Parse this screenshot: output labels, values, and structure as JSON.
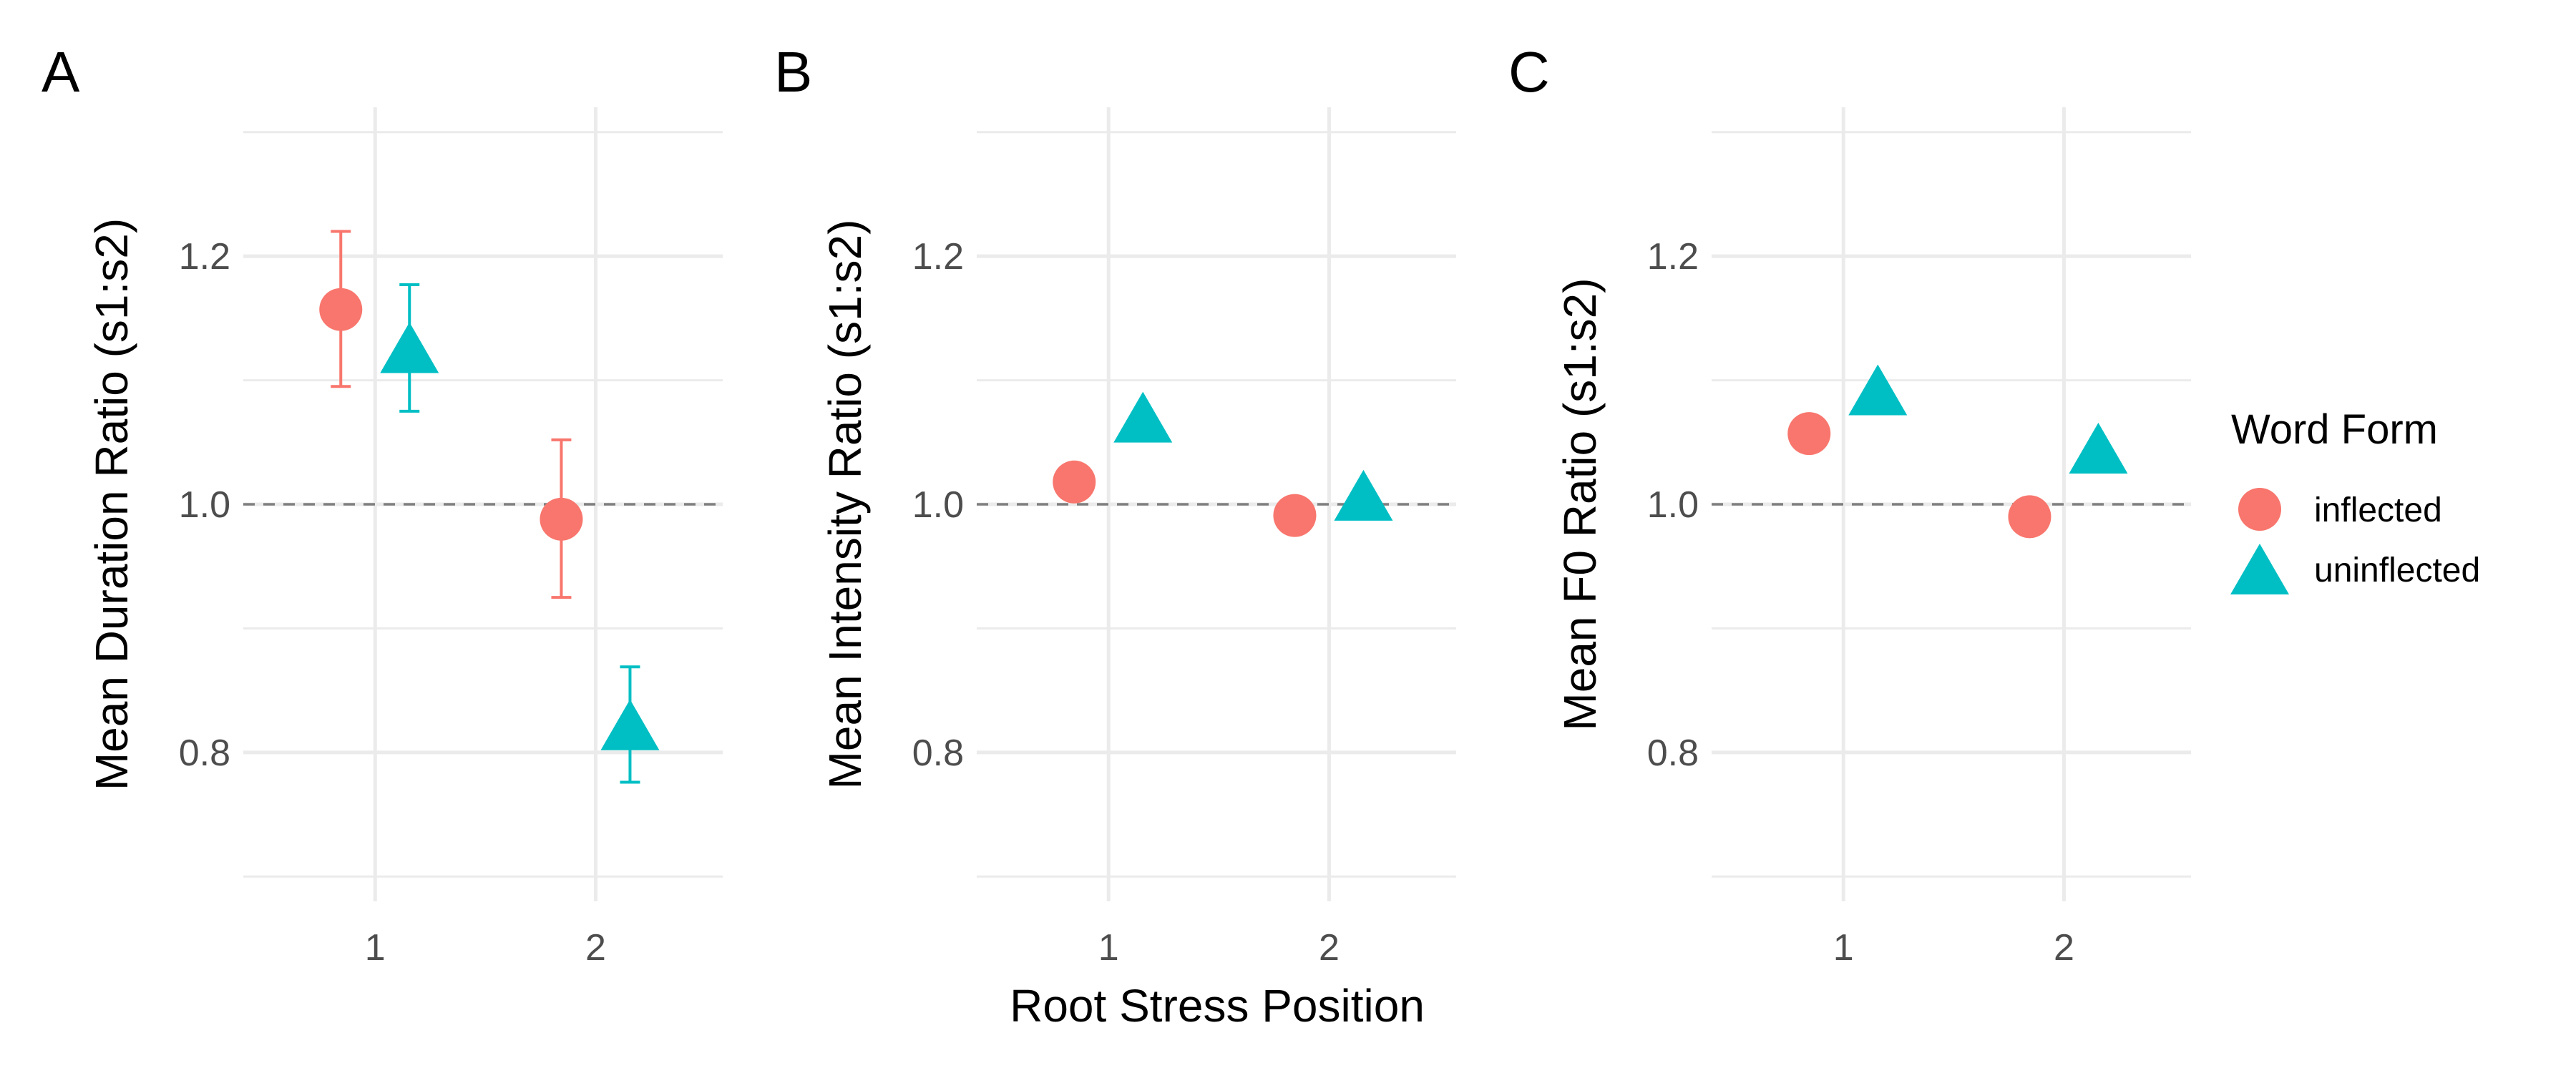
{
  "figure": {
    "x_axis_shared_label": "Root Stress Position",
    "legend": {
      "title": "Word Form",
      "placement": "right",
      "items": [
        {
          "label": "inflected",
          "shape": "circle",
          "color": "#F8766D"
        },
        {
          "label": "uninflected",
          "shape": "triangle",
          "color": "#00BFC4"
        }
      ]
    }
  },
  "chart_data": [
    {
      "type": "scatter",
      "panel": "A",
      "ylabel": "Mean Duration Ratio (s1:s2)",
      "xlabel": "",
      "categories": [
        "1",
        "2"
      ],
      "ylim": [
        0.68,
        1.32
      ],
      "yticks": [
        0.8,
        1.0,
        1.2
      ],
      "yticklabels": [
        "0.8",
        "1.0",
        "1.2"
      ],
      "reference_line": 1.0,
      "grid": true,
      "series": [
        {
          "name": "inflected",
          "shape": "circle",
          "color": "#F8766D",
          "values": [
            1.157,
            0.988
          ],
          "lower": [
            1.095,
            0.925
          ],
          "upper": [
            1.22,
            1.052
          ]
        },
        {
          "name": "uninflected",
          "shape": "triangle",
          "color": "#00BFC4",
          "values": [
            1.126,
            0.822
          ],
          "lower": [
            1.075,
            0.776
          ],
          "upper": [
            1.177,
            0.869
          ]
        }
      ]
    },
    {
      "type": "scatter",
      "panel": "B",
      "ylabel": "Mean Intensity Ratio (s1:s2)",
      "xlabel": "Root Stress Position",
      "categories": [
        "1",
        "2"
      ],
      "ylim": [
        0.68,
        1.32
      ],
      "yticks": [
        0.8,
        1.0,
        1.2
      ],
      "yticklabels": [
        "0.8",
        "1.0",
        "1.2"
      ],
      "reference_line": 1.0,
      "grid": true,
      "series": [
        {
          "name": "inflected",
          "shape": "circle",
          "color": "#F8766D",
          "values": [
            1.018,
            0.991
          ],
          "lower": [
            1.018,
            0.991
          ],
          "upper": [
            1.018,
            0.991
          ]
        },
        {
          "name": "uninflected",
          "shape": "triangle",
          "color": "#00BFC4",
          "values": [
            1.07,
            1.007
          ],
          "lower": [
            1.07,
            1.007
          ],
          "upper": [
            1.07,
            1.007
          ]
        }
      ]
    },
    {
      "type": "scatter",
      "panel": "C",
      "ylabel": "Mean F0 Ratio (s1:s2)",
      "xlabel": "",
      "categories": [
        "1",
        "2"
      ],
      "ylim": [
        0.68,
        1.32
      ],
      "yticks": [
        0.8,
        1.0,
        1.2
      ],
      "yticklabels": [
        "0.8",
        "1.0",
        "1.2"
      ],
      "reference_line": 1.0,
      "grid": true,
      "series": [
        {
          "name": "inflected",
          "shape": "circle",
          "color": "#F8766D",
          "values": [
            1.057,
            0.99
          ],
          "lower": [
            1.057,
            0.99
          ],
          "upper": [
            1.057,
            0.99
          ]
        },
        {
          "name": "uninflected",
          "shape": "triangle",
          "color": "#00BFC4",
          "values": [
            1.092,
            1.045
          ],
          "lower": [
            1.085,
            1.04
          ],
          "upper": [
            1.098,
            1.05
          ]
        }
      ]
    }
  ]
}
